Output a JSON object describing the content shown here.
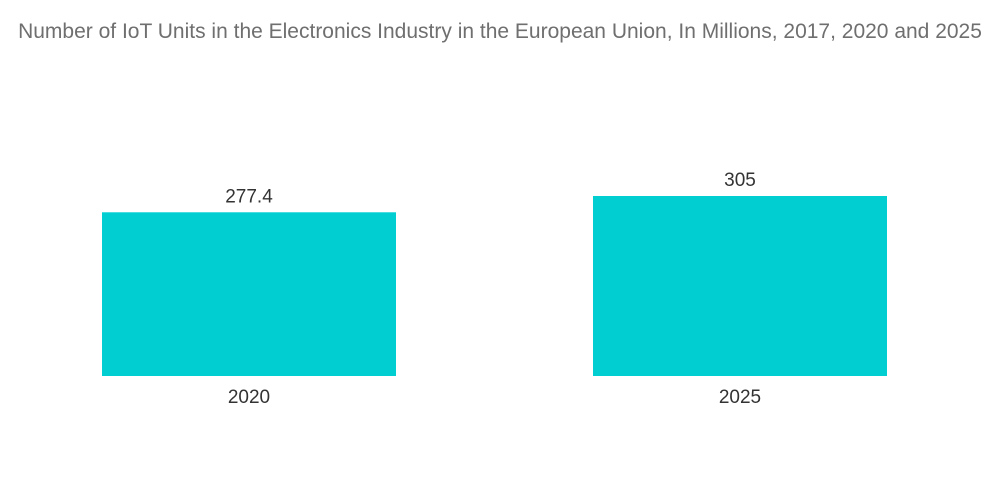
{
  "chart_data": {
    "type": "bar",
    "title": "Number of IoT Units in the Electronics Industry in the European Union, In Millions, 2017, 2020 and 2025",
    "categories": [
      "2020",
      "2025"
    ],
    "values": [
      277.4,
      305
    ],
    "data_labels": [
      "277.4",
      "305"
    ],
    "xlabel": "",
    "ylabel": "",
    "ylim": [
      0,
      305
    ],
    "grid": false,
    "legend": "none",
    "bar_color": "#00CED1"
  }
}
